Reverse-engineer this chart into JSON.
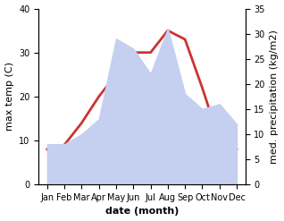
{
  "months": [
    "Jan",
    "Feb",
    "Mar",
    "Apr",
    "May",
    "Jun",
    "Jul",
    "Aug",
    "Sep",
    "Oct",
    "Nov",
    "Dec"
  ],
  "temp_C": [
    8,
    9,
    14,
    20,
    25,
    30,
    30,
    35,
    33,
    22,
    10,
    8
  ],
  "precip_kg": [
    8,
    8,
    10,
    13,
    29,
    27,
    22,
    31,
    18,
    15,
    16,
    12
  ],
  "temp_color": "#cc3333",
  "precip_fill_color": "#c5cff0",
  "background_color": "#ffffff",
  "xlabel": "date (month)",
  "ylabel_left": "max temp (C)",
  "ylabel_right": "med. precipitation (kg/m2)",
  "ylim_left": [
    0,
    40
  ],
  "ylim_right": [
    0,
    35
  ],
  "yticks_left": [
    0,
    10,
    20,
    30,
    40
  ],
  "yticks_right": [
    0,
    5,
    10,
    15,
    20,
    25,
    30,
    35
  ],
  "temp_linewidth": 2.0,
  "tick_fontsize": 7,
  "xlabel_fontsize": 8,
  "ylabel_fontsize": 8
}
